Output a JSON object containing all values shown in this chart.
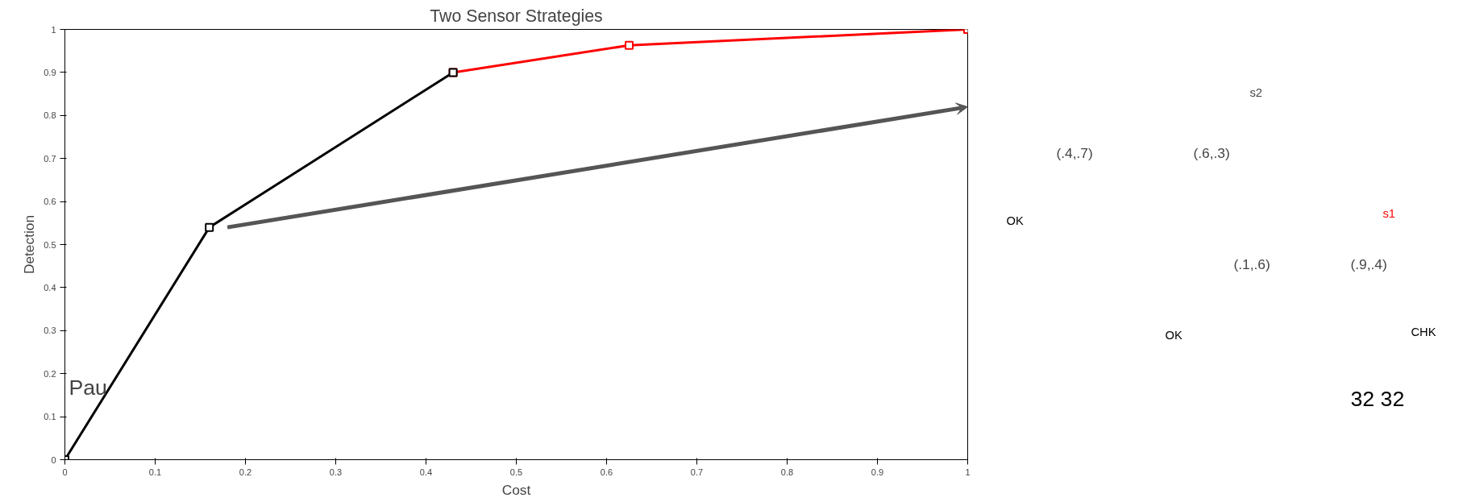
{
  "chart_data": [
    {
      "type": "line",
      "title": "Two Sensor Strategies",
      "xlabel": "Cost",
      "ylabel": "Detection",
      "xlim": [
        0,
        1
      ],
      "ylim": [
        0,
        1
      ],
      "xticks": [
        0,
        0.1,
        0.2,
        0.3,
        0.4,
        0.5,
        0.6,
        0.7,
        0.8,
        0.9,
        1
      ],
      "yticks": [
        0,
        0.1,
        0.2,
        0.3,
        0.4,
        0.5,
        0.6,
        0.7,
        0.8,
        0.9,
        1
      ],
      "grid": false,
      "marker": "square",
      "line_style": "solid",
      "series": [
        {
          "color": "#000000",
          "x": [
            0,
            0.16,
            0.43
          ],
          "values": [
            0,
            0.54,
            0.9
          ]
        },
        {
          "color": "#ff0000",
          "x": [
            0.43,
            0.625,
            1
          ],
          "values": [
            0.9,
            0.963,
            1
          ]
        }
      ],
      "annotations": [
        "Pau"
      ]
    },
    {
      "type": "other",
      "annotations": [
        "s2",
        "(.4,.7)",
        "(.6,.3)",
        "OK",
        "s1",
        "(.1,.6)",
        "(.9,.4)",
        "OK",
        "CHK",
        "32 32"
      ]
    }
  ]
}
